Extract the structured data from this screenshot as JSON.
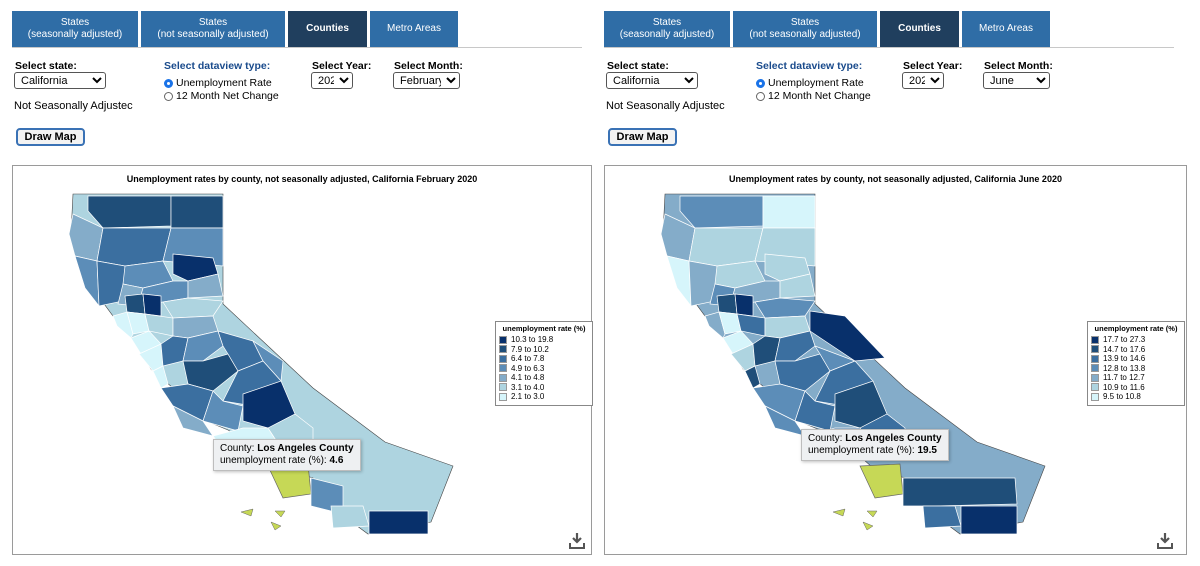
{
  "tabs": [
    {
      "label_line1": "States",
      "label_line2": "(seasonally adjusted)"
    },
    {
      "label_line1": "States",
      "label_line2": "(not seasonally adjusted)"
    },
    {
      "label_line1": "Counties",
      "label_line2": ""
    },
    {
      "label_line1": "Metro Areas",
      "label_line2": ""
    }
  ],
  "controls": {
    "state_label": "Select state:",
    "dataview_label": "Select dataview type:",
    "year_label": "Select Year:",
    "month_label": "Select Month:",
    "radio_rate": "Unemployment Rate",
    "radio_change": "12 Month Net Change",
    "adjustment": "Not Seasonally Adjustec",
    "draw_button": "Draw Map",
    "download_icon": "download-icon"
  },
  "left": {
    "state": "California",
    "year": "2020",
    "month": "February",
    "map_title": "Unemployment rates by county, not seasonally adjusted, California February 2020",
    "legend_title": "unemployment rate (%)",
    "legend": [
      {
        "range": "10.3 to 19.8",
        "color": "#08306b"
      },
      {
        "range": "7.9 to 10.2",
        "color": "#1f4e79"
      },
      {
        "range": "6.4 to 7.8",
        "color": "#3b6fa0"
      },
      {
        "range": "4.9 to 6.3",
        "color": "#5c8db8"
      },
      {
        "range": "4.1 to 4.8",
        "color": "#84acc9"
      },
      {
        "range": "3.1 to 4.0",
        "color": "#aed4e0"
      },
      {
        "range": "2.1 to 3.0",
        "color": "#d6f5fb"
      }
    ],
    "tooltip": {
      "county_label": "County:",
      "county": "Los Angeles County",
      "rate_label": "unemployment rate (%):",
      "rate": "4.6"
    }
  },
  "right": {
    "state": "California",
    "year": "2020",
    "month": "June",
    "map_title": "Unemployment rates by county, not seasonally adjusted, California June 2020",
    "legend_title": "unemployment rate (%)",
    "legend": [
      {
        "range": "17.7 to 27.3",
        "color": "#08306b"
      },
      {
        "range": "14.7 to 17.6",
        "color": "#1f4e79"
      },
      {
        "range": "13.9 to 14.6",
        "color": "#3b6fa0"
      },
      {
        "range": "12.8 to 13.8",
        "color": "#5c8db8"
      },
      {
        "range": "11.7 to 12.7",
        "color": "#84acc9"
      },
      {
        "range": "10.9 to 11.6",
        "color": "#aed4e0"
      },
      {
        "range": "9.5 to 10.8",
        "color": "#d6f5fb"
      }
    ],
    "tooltip": {
      "county_label": "County:",
      "county": "Los Angeles County",
      "rate_label": "unemployment rate (%):",
      "rate": "19.5"
    }
  },
  "colors": {
    "tab_bg": "#2f6da6",
    "tab_active": "#203f5e",
    "highlight": "#c6d856",
    "button_border": "#3a72b5"
  }
}
